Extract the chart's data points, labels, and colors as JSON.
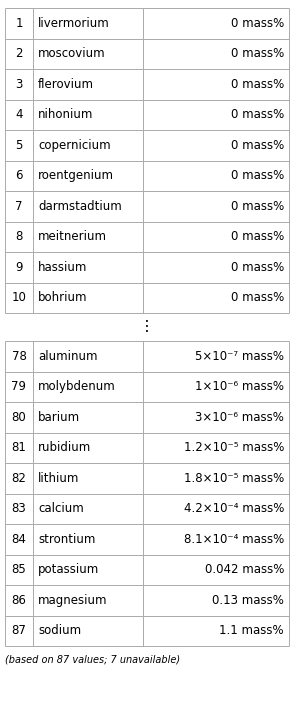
{
  "top_rows": [
    [
      "1",
      "livermorium",
      "0 mass%"
    ],
    [
      "2",
      "moscovium",
      "0 mass%"
    ],
    [
      "3",
      "flerovium",
      "0 mass%"
    ],
    [
      "4",
      "nihonium",
      "0 mass%"
    ],
    [
      "5",
      "copernicium",
      "0 mass%"
    ],
    [
      "6",
      "roentgenium",
      "0 mass%"
    ],
    [
      "7",
      "darmstadtium",
      "0 mass%"
    ],
    [
      "8",
      "meitnerium",
      "0 mass%"
    ],
    [
      "9",
      "hassium",
      "0 mass%"
    ],
    [
      "10",
      "bohrium",
      "0 mass%"
    ]
  ],
  "bottom_rows": [
    [
      "78",
      "aluminum",
      "5×10⁻⁷ mass%"
    ],
    [
      "79",
      "molybdenum",
      "1×10⁻⁶ mass%"
    ],
    [
      "80",
      "barium",
      "3×10⁻⁶ mass%"
    ],
    [
      "81",
      "rubidium",
      "1.2×10⁻⁵ mass%"
    ],
    [
      "82",
      "lithium",
      "1.8×10⁻⁵ mass%"
    ],
    [
      "83",
      "calcium",
      "4.2×10⁻⁴ mass%"
    ],
    [
      "84",
      "strontium",
      "8.1×10⁻⁴ mass%"
    ],
    [
      "85",
      "potassium",
      "0.042 mass%"
    ],
    [
      "86",
      "magnesium",
      "0.13 mass%"
    ],
    [
      "87",
      "sodium",
      "1.1 mass%"
    ]
  ],
  "footnote": "(based on 87 values; 7 unavailable)",
  "bg_color": "#ffffff",
  "line_color": "#aaaaaa",
  "text_color": "#000000",
  "font_size": 8.5,
  "footnote_font_size": 7.0
}
